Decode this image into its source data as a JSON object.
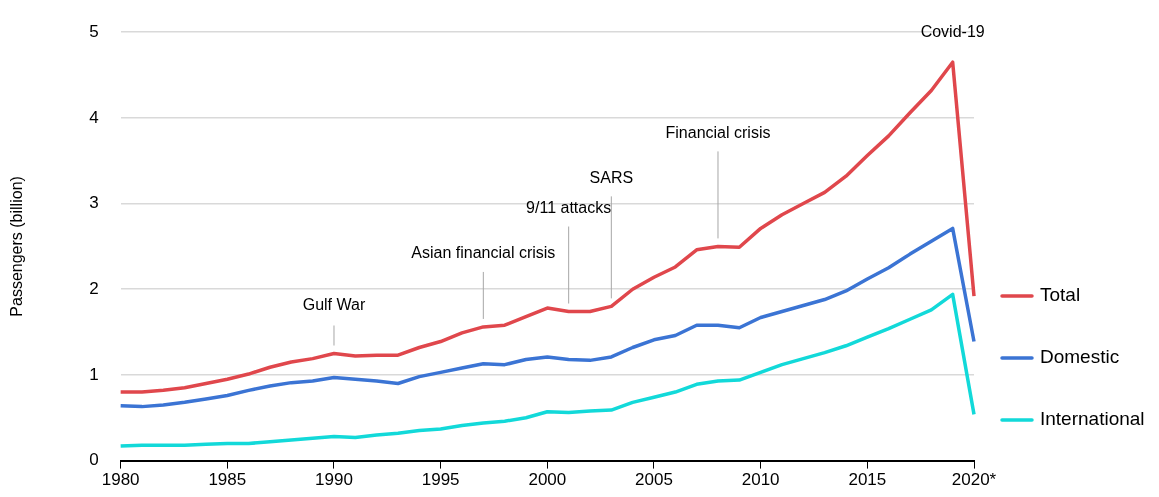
{
  "chart_data": {
    "type": "line",
    "ylabel": "Passengers (billion)",
    "x": [
      1980,
      1981,
      1982,
      1983,
      1984,
      1985,
      1986,
      1987,
      1988,
      1989,
      1990,
      1991,
      1992,
      1993,
      1994,
      1995,
      1996,
      1997,
      1998,
      1999,
      2000,
      2001,
      2002,
      2003,
      2004,
      2005,
      2006,
      2007,
      2008,
      2009,
      2010,
      2011,
      2012,
      2013,
      2014,
      2015,
      2016,
      2017,
      2018,
      2019,
      2020
    ],
    "series": [
      {
        "name": "Total",
        "color": "#e0474c",
        "values": [
          0.8,
          0.8,
          0.82,
          0.85,
          0.9,
          0.95,
          1.01,
          1.09,
          1.15,
          1.19,
          1.25,
          1.22,
          1.23,
          1.23,
          1.32,
          1.39,
          1.49,
          1.56,
          1.58,
          1.68,
          1.78,
          1.74,
          1.74,
          1.8,
          2.0,
          2.14,
          2.26,
          2.46,
          2.5,
          2.49,
          2.71,
          2.87,
          3.0,
          3.13,
          3.32,
          3.56,
          3.79,
          4.06,
          4.32,
          4.65,
          1.92
        ]
      },
      {
        "name": "Domestic",
        "color": "#3b74d4",
        "values": [
          0.64,
          0.63,
          0.65,
          0.68,
          0.72,
          0.76,
          0.82,
          0.87,
          0.91,
          0.93,
          0.97,
          0.95,
          0.93,
          0.9,
          0.98,
          1.03,
          1.08,
          1.13,
          1.12,
          1.18,
          1.21,
          1.18,
          1.17,
          1.21,
          1.32,
          1.41,
          1.46,
          1.58,
          1.58,
          1.55,
          1.67,
          1.74,
          1.81,
          1.88,
          1.98,
          2.12,
          2.25,
          2.41,
          2.56,
          2.71,
          1.39
        ]
      },
      {
        "name": "International",
        "color": "#12d9d9",
        "values": [
          0.17,
          0.18,
          0.18,
          0.18,
          0.19,
          0.2,
          0.2,
          0.22,
          0.24,
          0.26,
          0.28,
          0.27,
          0.3,
          0.32,
          0.35,
          0.37,
          0.41,
          0.44,
          0.46,
          0.5,
          0.57,
          0.56,
          0.58,
          0.59,
          0.68,
          0.74,
          0.8,
          0.89,
          0.93,
          0.94,
          1.03,
          1.12,
          1.19,
          1.26,
          1.34,
          1.44,
          1.54,
          1.65,
          1.76,
          1.94,
          0.54
        ]
      }
    ],
    "xlim": [
      1980,
      2020
    ],
    "xticks": [
      1980,
      1985,
      1990,
      1995,
      2000,
      2005,
      2010,
      2015,
      {
        "value": 2020,
        "label": "2020*"
      }
    ],
    "ylim": [
      0,
      5
    ],
    "yticks": [
      0,
      1,
      2,
      3,
      4,
      5
    ],
    "grid": "y",
    "legend": "right",
    "marker": "none",
    "line_style": "solid",
    "annotations": [
      {
        "text": "Gulf War",
        "x": 1990,
        "y": 1.25
      },
      {
        "text": "Asian financial crisis",
        "x": 1997,
        "y": 1.56
      },
      {
        "text": "9/11 attacks",
        "x": 2001,
        "y": 1.74
      },
      {
        "text": "SARS",
        "x": 2003,
        "y": 1.8
      },
      {
        "text": "Financial crisis",
        "x": 2008,
        "y": 2.5
      },
      {
        "text": "Covid-19",
        "x": 2019,
        "y": 4.65
      }
    ]
  }
}
